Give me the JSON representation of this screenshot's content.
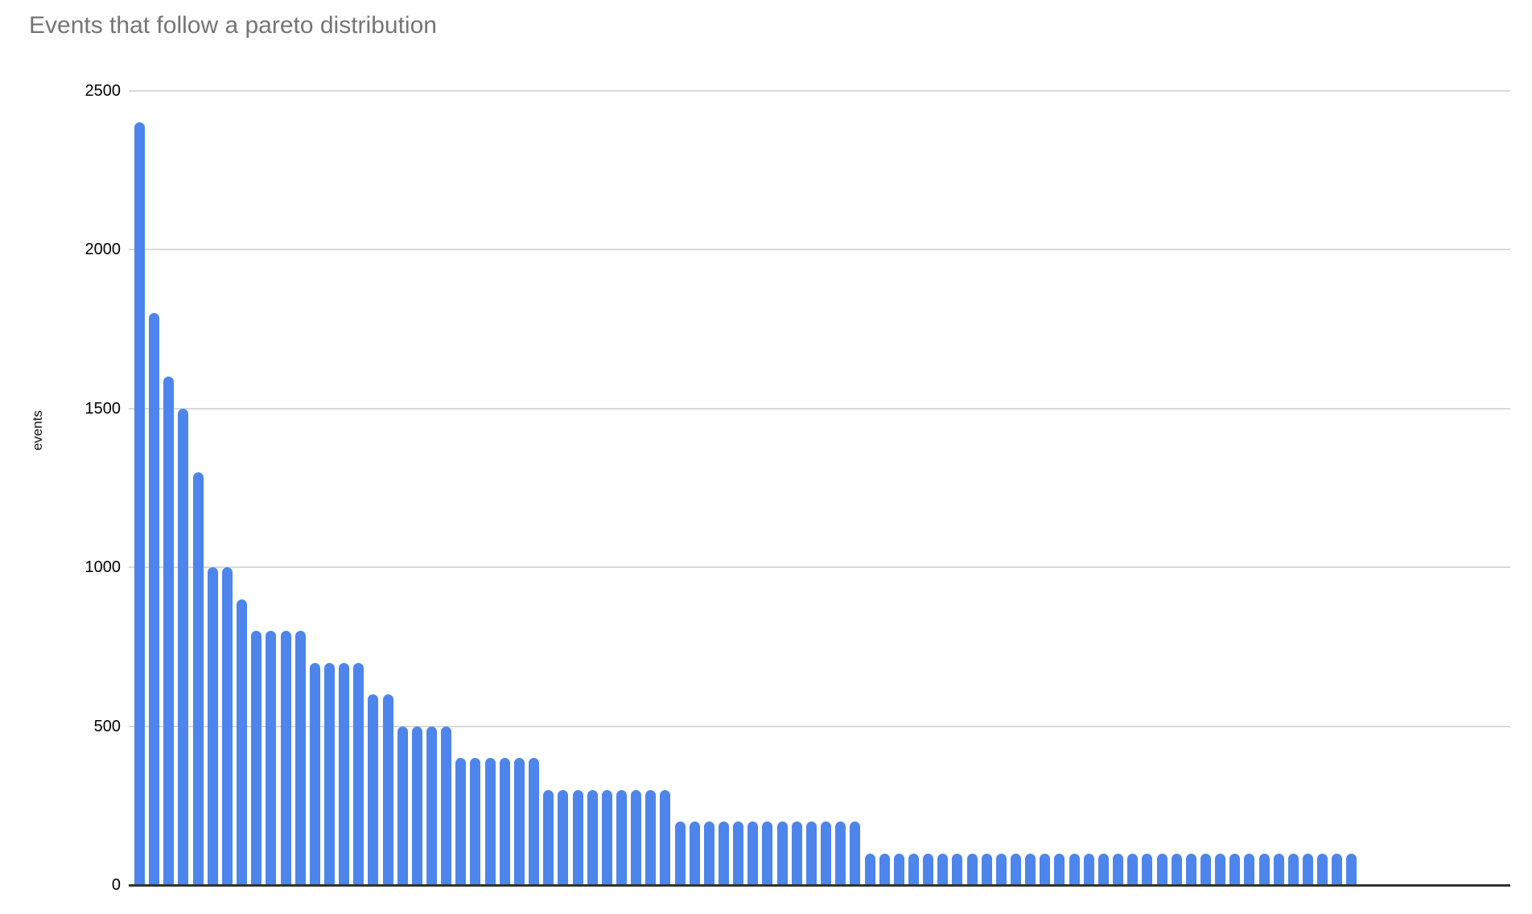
{
  "title": "Events that follow a pareto distribution",
  "chart_data": {
    "type": "bar",
    "title": "Events that follow a pareto distribution",
    "xlabel": "",
    "ylabel": "events",
    "ylim": [
      0,
      2500
    ],
    "yticks": [
      0,
      500,
      1000,
      1500,
      2000,
      2500
    ],
    "x_tick_labels": [],
    "grid": true,
    "legend": false,
    "colors": {
      "bar": "#4d85ec",
      "gridline": "#d9d9d9",
      "axis_line": "#333333",
      "tick_label": "#000000",
      "title": "#757575",
      "background": "#ffffff"
    },
    "values": [
      2400,
      1800,
      1600,
      1500,
      1300,
      1000,
      1000,
      900,
      800,
      800,
      800,
      800,
      700,
      700,
      700,
      700,
      600,
      600,
      500,
      500,
      500,
      500,
      400,
      400,
      400,
      400,
      400,
      400,
      300,
      300,
      300,
      300,
      300,
      300,
      300,
      300,
      300,
      200,
      200,
      200,
      200,
      200,
      200,
      200,
      200,
      200,
      200,
      200,
      200,
      200,
      100,
      100,
      100,
      100,
      100,
      100,
      100,
      100,
      100,
      100,
      100,
      100,
      100,
      100,
      100,
      100,
      100,
      100,
      100,
      100,
      100,
      100,
      100,
      100,
      100,
      100,
      100,
      100,
      100,
      100,
      100,
      100,
      100,
      100
    ]
  }
}
